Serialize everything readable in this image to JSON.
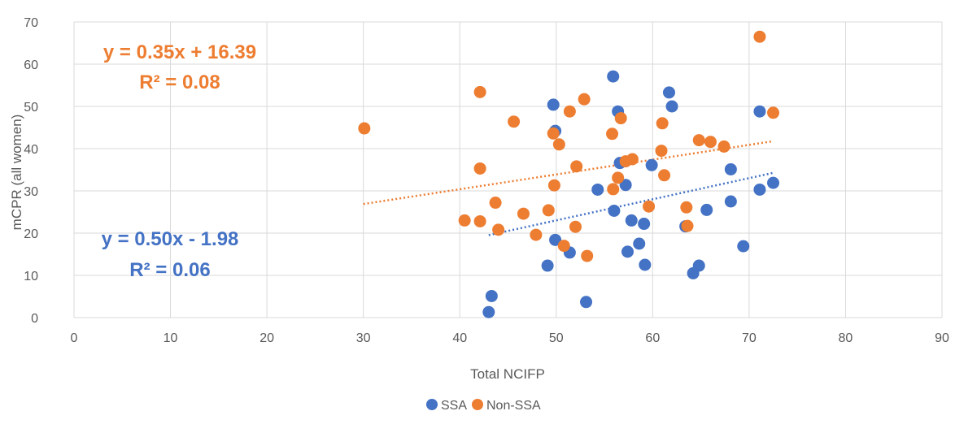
{
  "chart_data": {
    "type": "scatter",
    "title": "",
    "xlabel": "Total NCIFP",
    "ylabel": "mCPR (all women)",
    "xlim": [
      0,
      90
    ],
    "ylim": [
      0,
      70
    ],
    "xticks": [
      0,
      10,
      20,
      30,
      40,
      50,
      60,
      70,
      80,
      90
    ],
    "yticks": [
      0,
      10,
      20,
      30,
      40,
      50,
      60,
      70
    ],
    "grid": true,
    "legend_position": "bottom",
    "series": [
      {
        "name": "SSA",
        "color": "#4472C4",
        "points": [
          [
            43.0,
            1.3
          ],
          [
            43.3,
            5.1
          ],
          [
            49.1,
            12.3
          ],
          [
            49.9,
            18.4
          ],
          [
            49.7,
            50.4
          ],
          [
            49.9,
            44.2
          ],
          [
            51.4,
            15.4
          ],
          [
            53.1,
            3.7
          ],
          [
            54.3,
            30.3
          ],
          [
            55.9,
            57.1
          ],
          [
            56.4,
            48.8
          ],
          [
            56.0,
            25.3
          ],
          [
            56.6,
            36.6
          ],
          [
            57.2,
            31.4
          ],
          [
            57.4,
            15.6
          ],
          [
            57.8,
            23.0
          ],
          [
            58.6,
            17.5
          ],
          [
            59.1,
            22.2
          ],
          [
            59.2,
            12.5
          ],
          [
            59.9,
            36.1
          ],
          [
            61.7,
            53.3
          ],
          [
            62.0,
            50.0
          ],
          [
            63.4,
            21.6
          ],
          [
            64.2,
            10.5
          ],
          [
            64.8,
            12.3
          ],
          [
            65.6,
            25.5
          ],
          [
            68.1,
            35.1
          ],
          [
            68.1,
            27.5
          ],
          [
            69.4,
            16.9
          ],
          [
            71.1,
            48.8
          ],
          [
            71.1,
            30.3
          ],
          [
            72.5,
            31.9
          ]
        ],
        "trendline": {
          "x_start": 43,
          "x_end": 72.5,
          "slope": 0.5,
          "intercept": -1.98
        },
        "equation": "y = 0.50x - 1.98",
        "r2": "R² = 0.06"
      },
      {
        "name": "Non-SSA",
        "color": "#ED7D31",
        "points": [
          [
            30.1,
            44.8
          ],
          [
            40.5,
            23.0
          ],
          [
            42.1,
            22.8
          ],
          [
            42.1,
            35.3
          ],
          [
            42.1,
            53.4
          ],
          [
            43.7,
            27.2
          ],
          [
            44.0,
            20.8
          ],
          [
            45.6,
            46.4
          ],
          [
            46.6,
            24.6
          ],
          [
            47.9,
            19.6
          ],
          [
            49.2,
            25.4
          ],
          [
            49.7,
            43.6
          ],
          [
            49.8,
            31.3
          ],
          [
            50.3,
            41.0
          ],
          [
            50.8,
            17.0
          ],
          [
            51.4,
            48.8
          ],
          [
            52.0,
            21.5
          ],
          [
            52.1,
            35.8
          ],
          [
            52.9,
            51.7
          ],
          [
            53.2,
            14.6
          ],
          [
            55.8,
            43.5
          ],
          [
            55.9,
            30.4
          ],
          [
            56.4,
            33.1
          ],
          [
            56.7,
            47.2
          ],
          [
            57.2,
            37.0
          ],
          [
            57.9,
            37.5
          ],
          [
            59.6,
            26.3
          ],
          [
            60.9,
            39.5
          ],
          [
            61.0,
            46.0
          ],
          [
            61.2,
            33.7
          ],
          [
            63.5,
            26.1
          ],
          [
            63.6,
            21.7
          ],
          [
            64.8,
            42.0
          ],
          [
            66.0,
            41.6
          ],
          [
            67.4,
            40.5
          ],
          [
            71.1,
            66.5
          ],
          [
            72.5,
            48.5
          ]
        ],
        "trendline": {
          "x_start": 30,
          "x_end": 72.5,
          "slope": 0.35,
          "intercept": 16.39
        },
        "equation": "y = 0.35x + 16.39",
        "r2": "R² = 0.08"
      }
    ]
  }
}
